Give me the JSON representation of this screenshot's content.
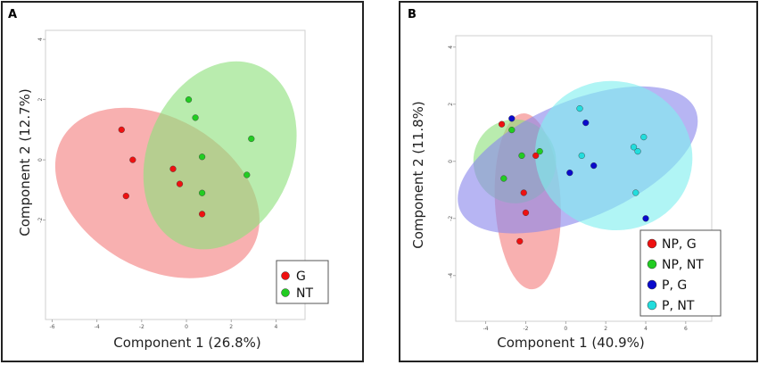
{
  "chart_data": [
    {
      "type": "scatter",
      "panel_label": "A",
      "xlabel": "Component 1 (26.8%)",
      "ylabel": "Component 2 (12.7%)",
      "xlim": [
        -6.3,
        5.3
      ],
      "ylim": [
        -5.3,
        4.3
      ],
      "xticks": [
        "-6",
        "-4",
        "-2",
        "0",
        "2",
        "4"
      ],
      "xtick_values": [
        -6,
        -4,
        -2,
        0,
        2,
        4
      ],
      "yticks": [
        "4",
        "2",
        "0",
        "-2"
      ],
      "ytick_values": [
        4,
        2,
        0,
        -2
      ],
      "legend_position": "bottom-right",
      "series": [
        {
          "name": "G",
          "color": "#ee1111",
          "ellipse_color": "#f37f7f",
          "ellipse": {
            "cx": -1.3,
            "cy": -1.1,
            "rx": 4.9,
            "ry": 2.5,
            "angle_deg": -30
          },
          "points": [
            [
              -2.9,
              1.0
            ],
            [
              -2.4,
              0.0
            ],
            [
              -2.7,
              -1.2
            ],
            [
              -0.6,
              -0.3
            ],
            [
              -0.3,
              -0.8
            ],
            [
              0.7,
              -1.8
            ]
          ]
        },
        {
          "name": "NT",
          "color": "#22cc22",
          "ellipse_color": "#8ee07c",
          "ellipse": {
            "cx": 1.5,
            "cy": 0.15,
            "rx": 4.35,
            "ry": 2.4,
            "angle_deg": 67
          },
          "points": [
            [
              0.1,
              2.0
            ],
            [
              0.4,
              1.4
            ],
            [
              0.7,
              0.1
            ],
            [
              2.9,
              0.7
            ],
            [
              2.7,
              -0.5
            ],
            [
              0.7,
              -1.1
            ]
          ]
        }
      ]
    },
    {
      "type": "scatter",
      "panel_label": "B",
      "xlabel": "Component 1 (40.9%)",
      "ylabel": "Component 2 (11.8%)",
      "xlim": [
        -5.5,
        7.3
      ],
      "ylim": [
        -5.6,
        4.4
      ],
      "xticks": [
        "-4",
        "-2",
        "0",
        "2",
        "4",
        "6"
      ],
      "xtick_values": [
        -4,
        -2,
        0,
        2,
        4,
        6
      ],
      "yticks": [
        "4",
        "2",
        "0",
        "-2",
        "-4"
      ],
      "ytick_values": [
        4,
        2,
        0,
        -2,
        -4
      ],
      "legend_position": "bottom-right",
      "series": [
        {
          "name": "NP, G",
          "color": "#ee1111",
          "ellipse_color": "#f37f7f",
          "ellipse": {
            "cx": -1.9,
            "cy": -1.4,
            "rx": 4.4,
            "ry": 1.15,
            "angle_deg": 93
          },
          "points": [
            [
              -3.2,
              1.3
            ],
            [
              -1.5,
              0.2
            ],
            [
              -2.1,
              -1.1
            ],
            [
              -2.0,
              -1.8
            ],
            [
              -2.3,
              -2.8
            ]
          ]
        },
        {
          "name": "NP, NT",
          "color": "#22cc22",
          "ellipse_color": "#8ee07c",
          "ellipse": {
            "cx": -2.55,
            "cy": 0.0,
            "rx": 2.1,
            "ry": 1.45,
            "angle_deg": 96
          },
          "points": [
            [
              -2.7,
              1.1
            ],
            [
              -2.2,
              0.2
            ],
            [
              -1.3,
              0.35
            ],
            [
              -3.1,
              -0.6
            ]
          ]
        },
        {
          "name": "P, G",
          "color": "#0a0acc",
          "ellipse_color": "#8a87ec",
          "ellipse": {
            "cx": 0.6,
            "cy": 0.05,
            "rx": 6.4,
            "ry": 2.05,
            "angle_deg": 23
          },
          "points": [
            [
              -2.7,
              1.5
            ],
            [
              1.0,
              1.35
            ],
            [
              1.4,
              -0.15
            ],
            [
              0.2,
              -0.4
            ],
            [
              4.0,
              -2.0
            ]
          ]
        },
        {
          "name": "P, NT",
          "color": "#22dddd",
          "ellipse_color": "#7fefef",
          "ellipse": {
            "cx": 2.4,
            "cy": 0.2,
            "rx": 3.95,
            "ry": 2.6,
            "angle_deg": -16
          },
          "points": [
            [
              0.7,
              1.85
            ],
            [
              0.8,
              0.2
            ],
            [
              3.4,
              0.5
            ],
            [
              3.6,
              0.35
            ],
            [
              3.9,
              0.85
            ],
            [
              3.5,
              -1.1
            ]
          ]
        }
      ]
    }
  ]
}
